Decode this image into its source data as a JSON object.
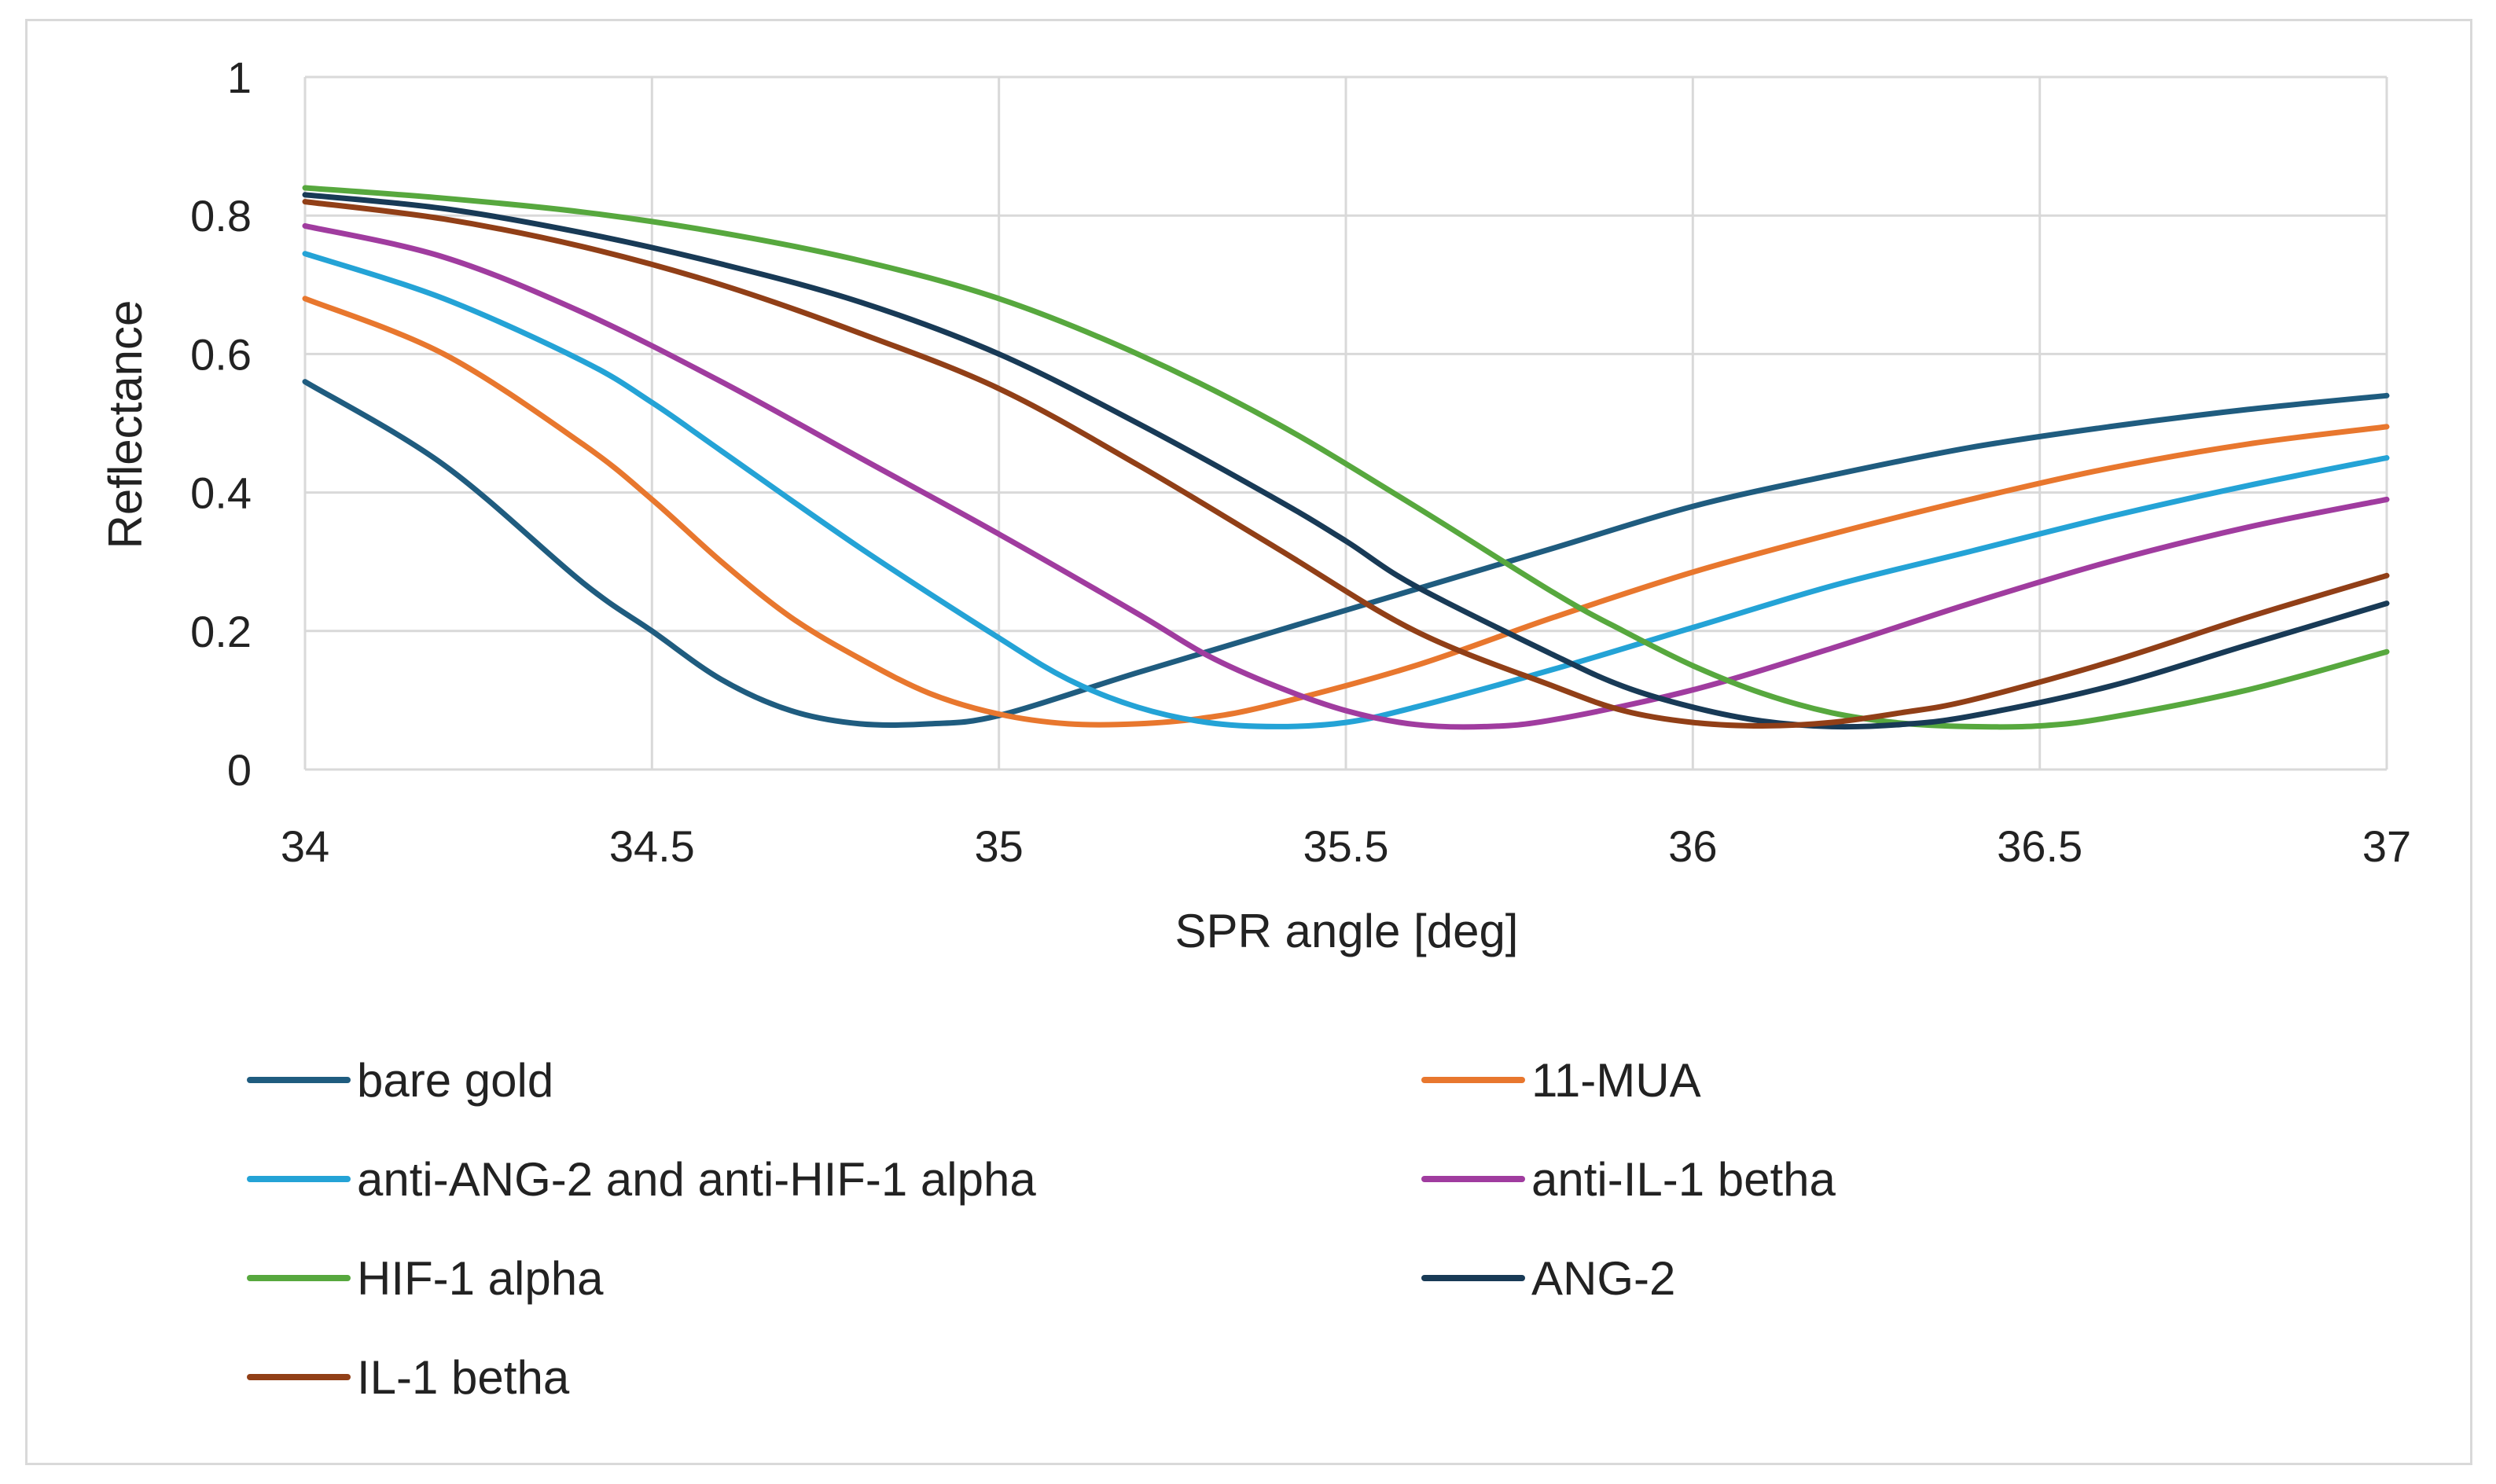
{
  "chart_data": {
    "type": "line",
    "title": "",
    "xlabel": "SPR angle [deg]",
    "ylabel": "Reflectance",
    "xlim": [
      34,
      37
    ],
    "ylim": [
      0,
      1
    ],
    "xticks": [
      34,
      34.5,
      35,
      35.5,
      36,
      36.5,
      37
    ],
    "xtick_labels": [
      "34",
      "34.5",
      "35",
      "35.5",
      "36",
      "36.5",
      "37"
    ],
    "yticks": [
      0,
      0.2,
      0.4,
      0.6,
      0.8,
      1
    ],
    "ytick_labels": [
      "0",
      "0.2",
      "0.4",
      "0.6",
      "0.8",
      "1"
    ],
    "grid": true,
    "legend_position": "bottom",
    "series": [
      {
        "name": "bare gold",
        "color": "#1F5C7F",
        "x": [
          34,
          34.2,
          34.4,
          34.5,
          34.6,
          34.7,
          34.8,
          34.9,
          35,
          35.2,
          35.4,
          35.6,
          35.8,
          36,
          36.2,
          36.4,
          36.6,
          36.8,
          37
        ],
        "y": [
          0.56,
          0.44,
          0.27,
          0.2,
          0.13,
          0.085,
          0.066,
          0.066,
          0.078,
          0.14,
          0.2,
          0.26,
          0.32,
          0.38,
          0.425,
          0.465,
          0.495,
          0.52,
          0.54
        ]
      },
      {
        "name": "11-MUA",
        "color": "#E8772E",
        "x": [
          34,
          34.2,
          34.4,
          34.5,
          34.6,
          34.7,
          34.8,
          34.9,
          35,
          35.1,
          35.2,
          35.3,
          35.4,
          35.6,
          35.8,
          36,
          36.2,
          36.4,
          36.6,
          36.8,
          37
        ],
        "y": [
          0.68,
          0.6,
          0.47,
          0.39,
          0.3,
          0.22,
          0.16,
          0.11,
          0.08,
          0.066,
          0.066,
          0.075,
          0.095,
          0.15,
          0.22,
          0.285,
          0.34,
          0.39,
          0.435,
          0.47,
          0.495
        ]
      },
      {
        "name": "anti-ANG-2 and anti-HIF-1 alpha",
        "color": "#24A3D6",
        "x": [
          34,
          34.2,
          34.4,
          34.5,
          34.6,
          34.8,
          35,
          35.1,
          35.2,
          35.3,
          35.4,
          35.5,
          35.6,
          35.8,
          36,
          36.2,
          36.4,
          36.6,
          36.8,
          37
        ],
        "y": [
          0.745,
          0.68,
          0.59,
          0.53,
          0.46,
          0.32,
          0.19,
          0.13,
          0.09,
          0.068,
          0.062,
          0.068,
          0.09,
          0.145,
          0.205,
          0.265,
          0.315,
          0.365,
          0.41,
          0.45
        ]
      },
      {
        "name": "anti-IL-1 betha",
        "color": "#A03C9F",
        "x": [
          34,
          34.2,
          34.4,
          34.6,
          34.8,
          35,
          35.2,
          35.3,
          35.4,
          35.5,
          35.6,
          35.7,
          35.8,
          36,
          36.2,
          36.4,
          36.6,
          36.8,
          37
        ],
        "y": [
          0.785,
          0.74,
          0.66,
          0.56,
          0.45,
          0.34,
          0.225,
          0.165,
          0.12,
          0.085,
          0.065,
          0.062,
          0.072,
          0.115,
          0.175,
          0.24,
          0.3,
          0.35,
          0.39
        ]
      },
      {
        "name": "HIF-1 alpha",
        "color": "#57A83E",
        "x": [
          34,
          34.2,
          34.4,
          34.6,
          34.8,
          35,
          35.2,
          35.4,
          35.6,
          35.8,
          35.9,
          36,
          36.1,
          36.2,
          36.3,
          36.4,
          36.5,
          36.6,
          36.8,
          37
        ],
        "y": [
          0.84,
          0.825,
          0.805,
          0.775,
          0.735,
          0.68,
          0.6,
          0.5,
          0.38,
          0.255,
          0.2,
          0.15,
          0.11,
          0.082,
          0.067,
          0.062,
          0.063,
          0.075,
          0.115,
          0.17
        ]
      },
      {
        "name": "ANG-2",
        "color": "#183A56",
        "x": [
          34,
          34.2,
          34.4,
          34.6,
          34.8,
          35,
          35.2,
          35.4,
          35.5,
          35.6,
          35.8,
          35.9,
          36,
          36.1,
          36.2,
          36.3,
          36.4,
          36.6,
          36.8,
          37
        ],
        "y": [
          0.83,
          0.81,
          0.775,
          0.73,
          0.675,
          0.6,
          0.5,
          0.39,
          0.33,
          0.265,
          0.165,
          0.12,
          0.09,
          0.07,
          0.062,
          0.065,
          0.077,
          0.12,
          0.18,
          0.24
        ]
      },
      {
        "name": "IL-1 betha",
        "color": "#913F17",
        "x": [
          34,
          34.2,
          34.4,
          34.6,
          34.8,
          35,
          35.2,
          35.4,
          35.6,
          35.8,
          35.9,
          36,
          36.1,
          36.2,
          36.3,
          36.4,
          36.6,
          36.8,
          37
        ],
        "y": [
          0.82,
          0.795,
          0.755,
          0.7,
          0.63,
          0.55,
          0.44,
          0.32,
          0.2,
          0.12,
          0.085,
          0.068,
          0.063,
          0.068,
          0.082,
          0.1,
          0.155,
          0.22,
          0.28
        ]
      }
    ]
  }
}
